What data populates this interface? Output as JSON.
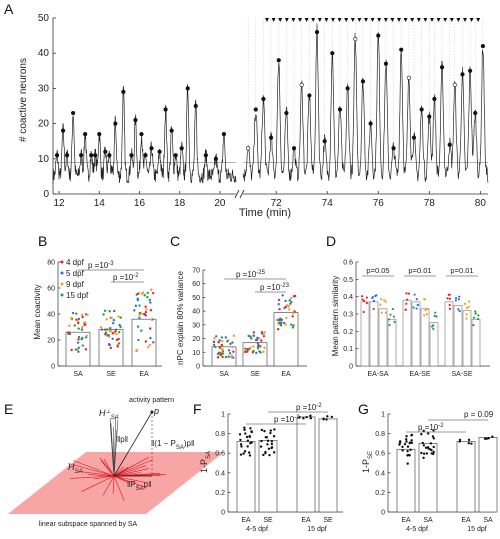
{
  "panel_labels": {
    "A": "A",
    "B": "B",
    "C": "C",
    "D": "D",
    "E": "E",
    "F": "F",
    "G": "G"
  },
  "chart_data": [
    {
      "id": "A",
      "type": "line",
      "ylabel": "# coactive neurons",
      "xlabel": "Time (min)",
      "ylim": [
        0,
        50
      ],
      "yticks": [
        0,
        10,
        20,
        30,
        40,
        50
      ],
      "left_xticks": [
        12,
        14,
        16,
        18,
        20
      ],
      "right_xticks": [
        72,
        74,
        76,
        78,
        80
      ],
      "left_xlim": [
        11.7,
        20.8
      ],
      "right_xlim": [
        70.7,
        80.3
      ],
      "threshold": 9,
      "left_peaks": [
        {
          "t": 11.9,
          "v": 11
        },
        {
          "t": 12.2,
          "v": 18
        },
        {
          "t": 12.4,
          "v": 11
        },
        {
          "t": 12.7,
          "v": 23
        },
        {
          "t": 13.1,
          "v": 11
        },
        {
          "t": 13.3,
          "v": 17
        },
        {
          "t": 13.6,
          "v": 11
        },
        {
          "t": 13.8,
          "v": 11
        },
        {
          "t": 14.0,
          "v": 17
        },
        {
          "t": 14.3,
          "v": 12
        },
        {
          "t": 14.5,
          "v": 11
        },
        {
          "t": 14.8,
          "v": 20
        },
        {
          "t": 15.2,
          "v": 29
        },
        {
          "t": 15.6,
          "v": 11
        },
        {
          "t": 15.8,
          "v": 21
        },
        {
          "t": 16.1,
          "v": 17
        },
        {
          "t": 16.3,
          "v": 11
        },
        {
          "t": 16.6,
          "v": 13
        },
        {
          "t": 17.0,
          "v": 12
        },
        {
          "t": 17.3,
          "v": 24
        },
        {
          "t": 17.6,
          "v": 18
        },
        {
          "t": 17.8,
          "v": 11
        },
        {
          "t": 18.1,
          "v": 13
        },
        {
          "t": 18.4,
          "v": 30
        },
        {
          "t": 18.8,
          "v": 25
        },
        {
          "t": 19.3,
          "v": 11
        },
        {
          "t": 19.8,
          "v": 10
        },
        {
          "t": 20.2,
          "v": 17
        }
      ],
      "right_peaks": [
        {
          "t": 70.9,
          "v": 13
        },
        {
          "t": 71.2,
          "v": 24
        },
        {
          "t": 71.5,
          "v": 27
        },
        {
          "t": 71.8,
          "v": 16
        },
        {
          "t": 72.1,
          "v": 38
        },
        {
          "t": 72.4,
          "v": 23
        },
        {
          "t": 72.7,
          "v": 13
        },
        {
          "t": 73.0,
          "v": 31
        },
        {
          "t": 73.3,
          "v": 28
        },
        {
          "t": 73.6,
          "v": 46
        },
        {
          "t": 73.9,
          "v": 15
        },
        {
          "t": 74.2,
          "v": 40
        },
        {
          "t": 74.5,
          "v": 24
        },
        {
          "t": 74.8,
          "v": 30
        },
        {
          "t": 75.1,
          "v": 44
        },
        {
          "t": 75.4,
          "v": 32
        },
        {
          "t": 75.7,
          "v": 20
        },
        {
          "t": 76.0,
          "v": 45
        },
        {
          "t": 76.3,
          "v": 37
        },
        {
          "t": 76.6,
          "v": 13
        },
        {
          "t": 76.9,
          "v": 41
        },
        {
          "t": 77.2,
          "v": 33
        },
        {
          "t": 77.4,
          "v": 16
        },
        {
          "t": 77.7,
          "v": 24
        },
        {
          "t": 78.0,
          "v": 22
        },
        {
          "t": 78.2,
          "v": 27
        },
        {
          "t": 78.5,
          "v": 36
        },
        {
          "t": 78.8,
          "v": 14
        },
        {
          "t": 79.0,
          "v": 31
        },
        {
          "t": 79.3,
          "v": 34
        },
        {
          "t": 79.6,
          "v": 35
        },
        {
          "t": 79.8,
          "v": 23
        },
        {
          "t": 80.1,
          "v": 42
        }
      ],
      "triangle_count": 33
    },
    {
      "id": "B",
      "type": "bar",
      "ylabel": "Mean coactivity",
      "categories": [
        "SA",
        "SE",
        "EA"
      ],
      "values": [
        26,
        28,
        36
      ],
      "ylim": [
        0,
        80
      ],
      "yticks": [
        0,
        20,
        40,
        60,
        80
      ],
      "legend": [
        "4 dpf",
        "5 dpf",
        "9 dpf",
        "15 dpf"
      ],
      "annotations": [
        "p =10",
        "-3",
        "p =10",
        "-2"
      ]
    },
    {
      "id": "C",
      "type": "bar",
      "ylabel": "nPC explain 80% variance",
      "categories": [
        "SA",
        "SE",
        "EA"
      ],
      "values": [
        14,
        17,
        39
      ],
      "ylim": [
        0,
        70
      ],
      "yticks": [
        0,
        10,
        20,
        30,
        40,
        50,
        60,
        70
      ],
      "annotations": [
        "p =10",
        "-25",
        "p =10",
        "-23"
      ]
    },
    {
      "id": "D",
      "type": "bar",
      "ylabel": "Mean pattern similarity",
      "categories": [
        "EA-SA",
        "EA-SE",
        "SA-SE"
      ],
      "values": [
        [
          0.37,
          0.37,
          0.33,
          0.27
        ],
        [
          0.38,
          0.37,
          0.33,
          0.25
        ],
        [
          0.37,
          0.35,
          0.32,
          0.27
        ]
      ],
      "ylim": [
        0,
        0.6
      ],
      "yticks": [
        0,
        0.1,
        0.2,
        0.3,
        0.4,
        0.5,
        0.6
      ],
      "annotations": [
        "p=0.05",
        "p=0.01",
        "p=0.01"
      ]
    },
    {
      "id": "F",
      "type": "bar",
      "ylabel": "1-P",
      "ylabel_sub": "SA",
      "categories": [
        "EA",
        "SE",
        "EA",
        "SE"
      ],
      "groups": [
        "4-5 dpf",
        "15 dpf"
      ],
      "values": [
        0.72,
        0.73,
        0.97,
        0.95
      ],
      "ylim": [
        0,
        1
      ],
      "yticks": [
        0,
        0.2,
        0.4,
        0.6,
        0.8,
        1
      ],
      "annotations": [
        "p =10",
        "-2",
        "p =10",
        "-2"
      ]
    },
    {
      "id": "G",
      "type": "bar",
      "ylabel": "1-P",
      "ylabel_sub": "SE",
      "categories": [
        "EA",
        "SA",
        "EA",
        "SA"
      ],
      "groups": [
        "4-5 dpf",
        "15 dpf"
      ],
      "values": [
        0.64,
        0.7,
        0.72,
        0.76
      ],
      "ylim": [
        0,
        1
      ],
      "yticks": [
        0,
        0.2,
        0.4,
        0.6,
        0.8,
        1
      ],
      "annotations": [
        "p =10",
        "-2",
        "p = 0.09"
      ]
    }
  ],
  "diagram_E": {
    "h_perp": "H",
    "h_perp_sup": "⊥",
    "h_perp_sub": "SA",
    "activity_pattern": "activity pattern",
    "p": "p",
    "norm_p": "‖p‖",
    "residual": "‖(1 − P",
    "residual_sub": "SA",
    "residual_end": ")p‖",
    "hsa": "H",
    "hsa_sub": "SA",
    "proj": "‖P",
    "proj_sub": "SA",
    "proj_end": "p‖",
    "caption": "linear subspace spanned by SA"
  },
  "colors": {
    "red": "#e8202a",
    "blue": "#2f6fd6",
    "orange": "#f0a020",
    "green": "#2a9a3a",
    "plane": "#f7a5a5"
  }
}
